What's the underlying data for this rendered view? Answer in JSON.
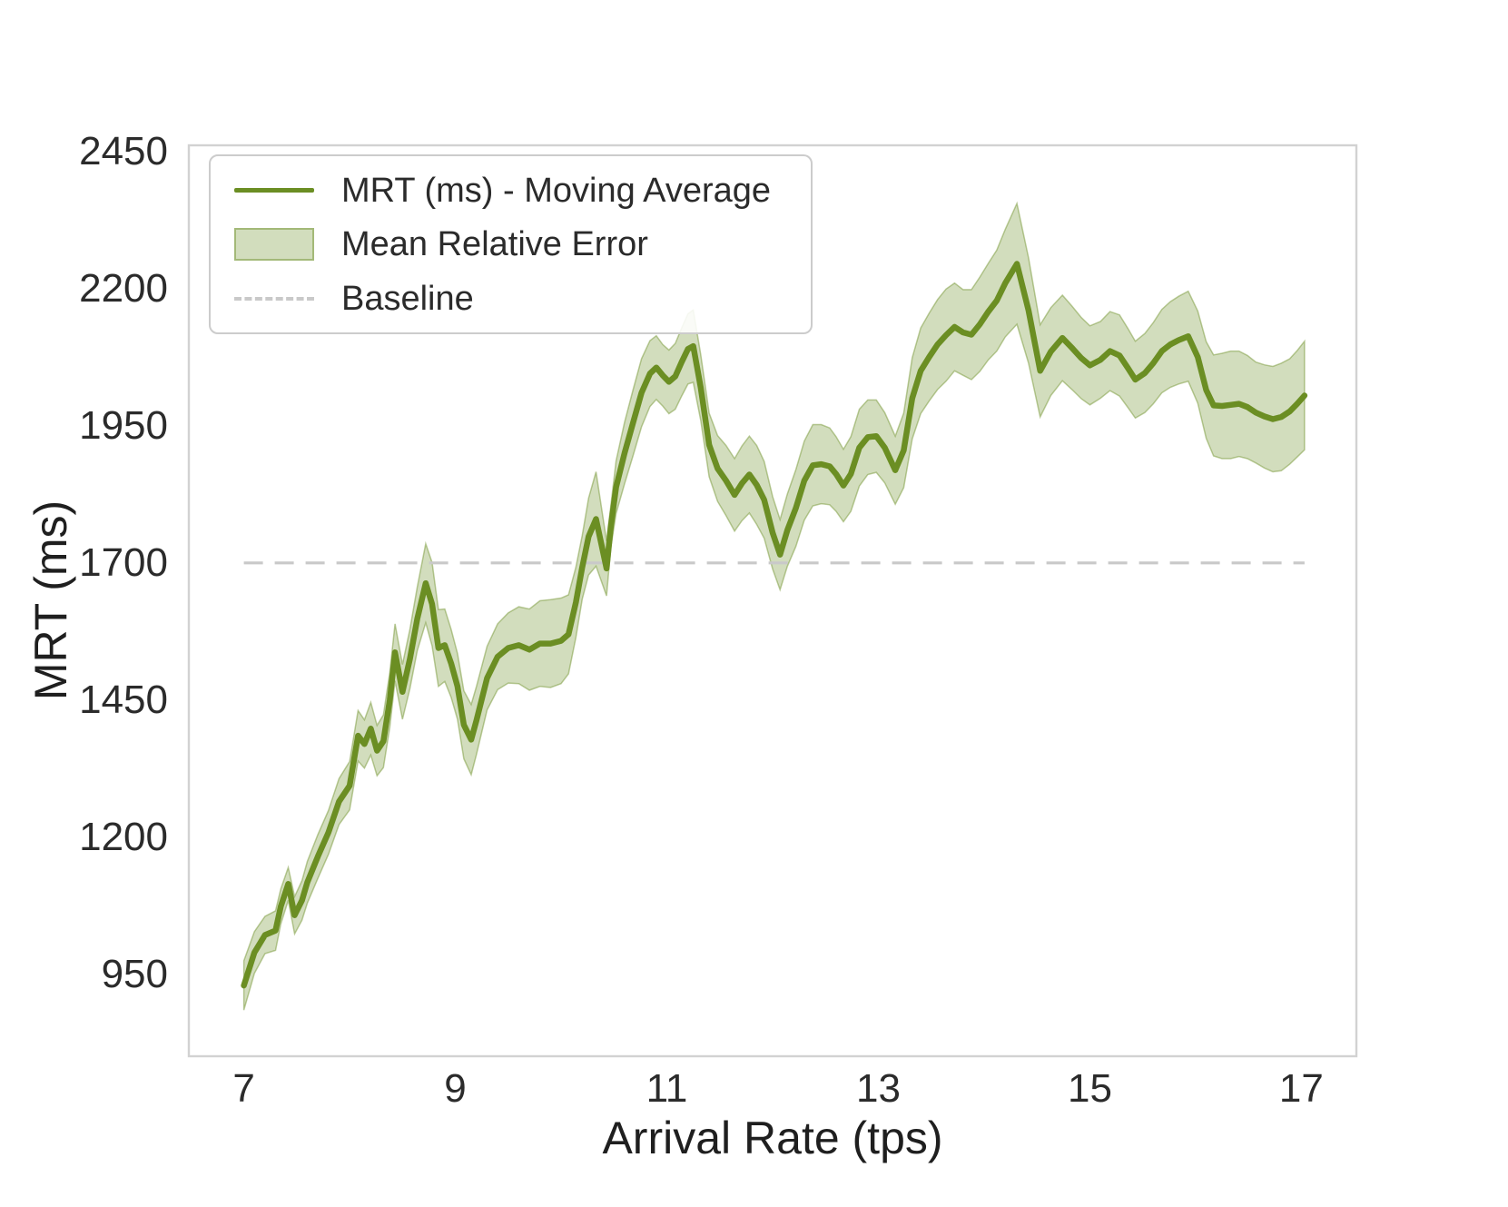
{
  "figure": {
    "x_axis_label": "Arrival Rate (tps)",
    "y_axis_label": "MRT (ms)"
  },
  "legend": {
    "items": [
      {
        "label": "MRT (ms) - Moving Average",
        "swatch": "line"
      },
      {
        "label": "Mean Relative Error",
        "swatch": "band"
      },
      {
        "label": "Baseline",
        "swatch": "dashed-line"
      }
    ]
  },
  "colors": {
    "line": "#6b8e23",
    "band_fill": "rgba(107,142,35,0.30)",
    "band_edge": "rgba(107,142,35,0.45)",
    "baseline": "#c9c9c9",
    "plot_border": "#d2d2d2",
    "tick_text": "#2b2b2b"
  },
  "chart_data": {
    "type": "line",
    "title": "",
    "xlabel": "Arrival Rate (tps)",
    "ylabel": "MRT (ms)",
    "xlim": [
      6.48,
      17.52
    ],
    "ylim": [
      801,
      2461
    ],
    "x_ticks": [
      7,
      9,
      11,
      13,
      15,
      17
    ],
    "y_ticks": [
      950,
      1200,
      1450,
      1700,
      1950,
      2200,
      2450
    ],
    "grid": false,
    "legend_position": "upper left",
    "baseline": {
      "value": 1700,
      "label": "Baseline",
      "style": "dashed"
    },
    "series": [
      {
        "name": "MRT (ms) - Moving Average",
        "band_name": "Mean Relative Error",
        "x": [
          7.0,
          7.1,
          7.2,
          7.3,
          7.35,
          7.42,
          7.48,
          7.55,
          7.6,
          7.7,
          7.8,
          7.9,
          8.0,
          8.08,
          8.14,
          8.2,
          8.26,
          8.32,
          8.38,
          8.43,
          8.5,
          8.57,
          8.64,
          8.72,
          8.78,
          8.84,
          8.9,
          8.96,
          9.02,
          9.08,
          9.15,
          9.2,
          9.3,
          9.4,
          9.5,
          9.6,
          9.7,
          9.8,
          9.9,
          10.0,
          10.07,
          10.14,
          10.2,
          10.26,
          10.33,
          10.43,
          10.47,
          10.52,
          10.6,
          10.68,
          10.76,
          10.84,
          10.9,
          10.96,
          11.02,
          11.08,
          11.14,
          11.2,
          11.25,
          11.32,
          11.4,
          11.48,
          11.56,
          11.64,
          11.71,
          11.78,
          11.85,
          11.92,
          12.0,
          12.07,
          12.14,
          12.22,
          12.3,
          12.38,
          12.46,
          12.54,
          12.6,
          12.67,
          12.74,
          12.82,
          12.9,
          12.98,
          13.06,
          13.16,
          13.24,
          13.32,
          13.4,
          13.48,
          13.56,
          13.64,
          13.72,
          13.8,
          13.88,
          13.96,
          14.04,
          14.12,
          14.2,
          14.31,
          14.42,
          14.53,
          14.63,
          14.74,
          14.83,
          14.92,
          15.0,
          15.1,
          15.19,
          15.28,
          15.36,
          15.43,
          15.52,
          15.6,
          15.68,
          15.76,
          15.84,
          15.93,
          16.02,
          16.1,
          16.17,
          16.25,
          16.33,
          16.41,
          16.49,
          16.57,
          16.65,
          16.73,
          16.81,
          16.89,
          16.96,
          17.03
        ],
        "y": [
          930,
          990,
          1022,
          1030,
          1074,
          1115,
          1058,
          1085,
          1118,
          1165,
          1209,
          1265,
          1294,
          1385,
          1370,
          1398,
          1358,
          1375,
          1450,
          1537,
          1465,
          1525,
          1598,
          1663,
          1625,
          1545,
          1550,
          1517,
          1475,
          1405,
          1378,
          1413,
          1490,
          1529,
          1545,
          1550,
          1542,
          1553,
          1553,
          1558,
          1570,
          1628,
          1692,
          1748,
          1780,
          1690,
          1766,
          1838,
          1900,
          1955,
          2010,
          2045,
          2056,
          2042,
          2030,
          2040,
          2066,
          2090,
          2095,
          2020,
          1915,
          1872,
          1850,
          1824,
          1845,
          1861,
          1842,
          1815,
          1755,
          1715,
          1760,
          1800,
          1850,
          1878,
          1880,
          1876,
          1862,
          1841,
          1862,
          1910,
          1929,
          1931,
          1910,
          1869,
          1905,
          2000,
          2050,
          2075,
          2098,
          2115,
          2130,
          2120,
          2116,
          2135,
          2158,
          2178,
          2210,
          2245,
          2160,
          2050,
          2085,
          2110,
          2092,
          2073,
          2060,
          2070,
          2086,
          2078,
          2055,
          2034,
          2046,
          2064,
          2086,
          2098,
          2106,
          2113,
          2075,
          2015,
          1987,
          1986,
          1988,
          1990,
          1984,
          1974,
          1967,
          1962,
          1966,
          1976,
          1990,
          2005
        ],
        "err": [
          45,
          38,
          34,
          36,
          32,
          30,
          34,
          36,
          38,
          40,
          40,
          42,
          44,
          46,
          44,
          48,
          46,
          48,
          50,
          52,
          50,
          54,
          58,
          72,
          76,
          70,
          66,
          62,
          60,
          62,
          64,
          62,
          58,
          60,
          64,
          70,
          74,
          78,
          80,
          78,
          72,
          64,
          58,
          70,
          86,
          50,
          38,
          48,
          56,
          60,
          62,
          60,
          58,
          56,
          58,
          60,
          62,
          64,
          66,
          60,
          58,
          60,
          64,
          66,
          68,
          70,
          72,
          70,
          66,
          64,
          66,
          70,
          72,
          74,
          72,
          70,
          68,
          66,
          68,
          70,
          68,
          66,
          64,
          62,
          68,
          74,
          78,
          80,
          82,
          84,
          80,
          78,
          82,
          86,
          88,
          92,
          98,
          110,
          96,
          84,
          80,
          78,
          76,
          74,
          72,
          70,
          72,
          74,
          72,
          70,
          72,
          74,
          76,
          78,
          80,
          82,
          84,
          88,
          92,
          96,
          98,
          96,
          94,
          92,
          94,
          96,
          98,
          96,
          97,
          99
        ]
      }
    ]
  }
}
